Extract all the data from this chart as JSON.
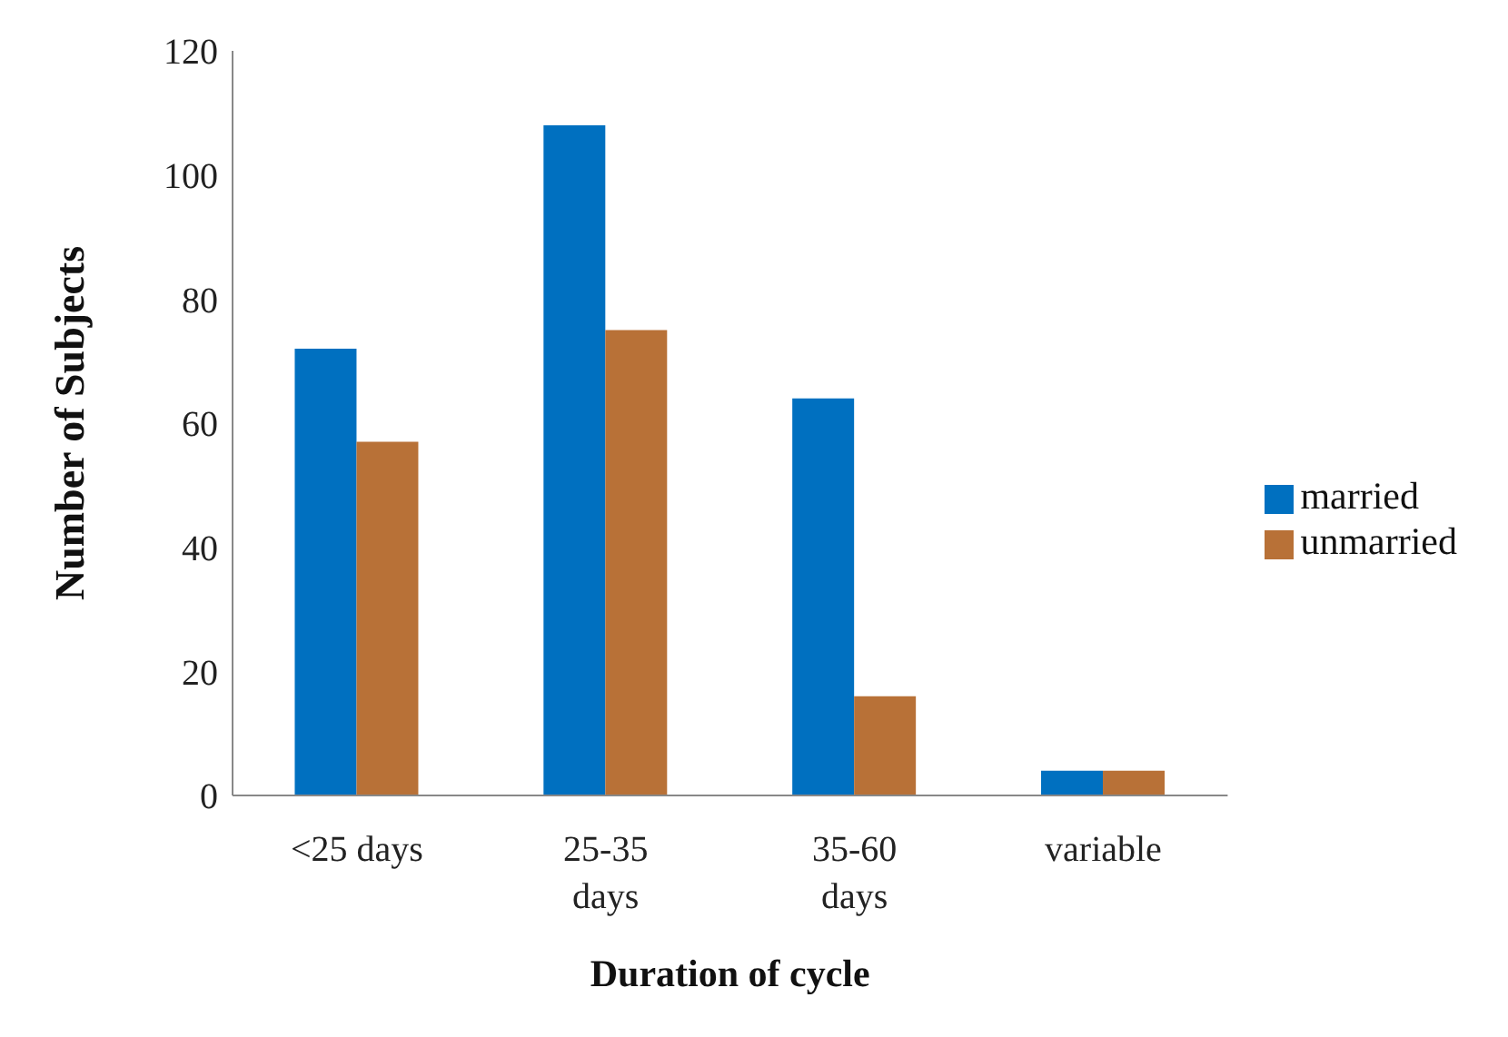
{
  "chart_data": {
    "type": "bar",
    "xlabel": "Duration of cycle",
    "ylabel": "Number of Subjects",
    "categories": [
      "<25 days",
      "25-35 days",
      "35-60 days",
      "variable"
    ],
    "series": [
      {
        "name": "married",
        "color": "#0070c0",
        "values": [
          72,
          108,
          64,
          4
        ]
      },
      {
        "name": "unmarried",
        "color": "#b87137",
        "values": [
          57,
          75,
          16,
          4
        ]
      }
    ],
    "ylim": [
      0,
      120
    ],
    "yticks": [
      0,
      20,
      40,
      60,
      80,
      100,
      120
    ],
    "grid": false,
    "legend": "right"
  }
}
